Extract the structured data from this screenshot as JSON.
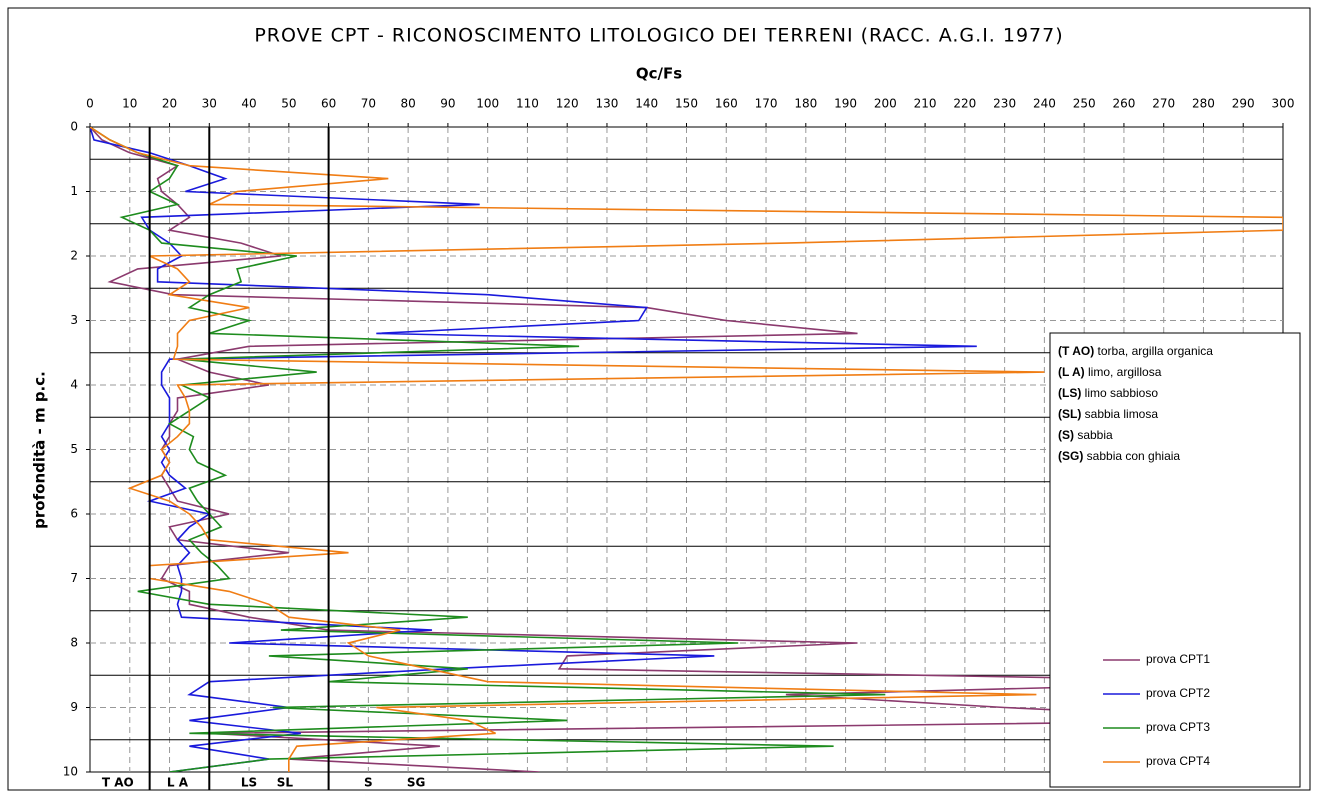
{
  "chart_data": {
    "type": "line",
    "title": "PROVE CPT - RICONOSCIMENTO LITOLOGICO DEI TERRENI (RACC. A.G.I. 1977)",
    "x_label": "Qc/Fs",
    "y_label": "profondità - m p.c.",
    "xlim": [
      0,
      300
    ],
    "xticks": [
      0,
      10,
      20,
      30,
      40,
      50,
      60,
      70,
      80,
      90,
      100,
      110,
      120,
      130,
      140,
      150,
      160,
      170,
      180,
      190,
      200,
      210,
      220,
      230,
      240,
      250,
      260,
      270,
      280,
      290,
      300
    ],
    "ylim": [
      0,
      10
    ],
    "yticks": [
      0,
      1,
      2,
      3,
      4,
      5,
      6,
      7,
      8,
      9,
      10
    ],
    "y_inverted": true,
    "grid": true,
    "zone_boundaries": [
      15,
      30,
      60
    ],
    "layer_lines": [
      0.5,
      1.5,
      2.5,
      3.5,
      4.5,
      5.5,
      6.5,
      7.5,
      8.5,
      9.5
    ],
    "zones": [
      {
        "code": "T AO",
        "x": 7
      },
      {
        "code": "L A",
        "x": 22
      },
      {
        "code": "LS",
        "x": 40
      },
      {
        "code": "SL",
        "x": 49
      },
      {
        "code": "S",
        "x": 70
      },
      {
        "code": "SG",
        "x": 82
      }
    ],
    "zone_legend": [
      {
        "code": "(T AO)",
        "text": " torba, argilla organica"
      },
      {
        "code": "(L A)",
        "text": " limo, argillosa"
      },
      {
        "code": "(LS)",
        "text": " limo sabbioso"
      },
      {
        "code": "(SL)",
        "text": " sabbia limosa"
      },
      {
        "code": "(S)",
        "text": " sabbia"
      },
      {
        "code": "(SG)",
        "text": " sabbia con ghiaia"
      }
    ],
    "depth": [
      0,
      0.2,
      0.4,
      0.6,
      0.8,
      1,
      1.2,
      1.4,
      1.6,
      1.8,
      2,
      2.2,
      2.4,
      2.6,
      2.8,
      3,
      3.2,
      3.4,
      3.6,
      3.8,
      4,
      4.2,
      4.4,
      4.6,
      4.8,
      5,
      5.2,
      5.4,
      5.6,
      5.8,
      6,
      6.2,
      6.4,
      6.6,
      6.8,
      7,
      7.2,
      7.4,
      7.6,
      7.8,
      8,
      8.2,
      8.4,
      8.6,
      8.8,
      9,
      9.2,
      9.4,
      9.6,
      9.8,
      10
    ],
    "series": [
      {
        "name": "prova CPT1",
        "color": "#8b3a6e",
        "values": [
          0,
          3,
          10,
          22,
          17,
          18,
          22,
          25,
          20,
          38,
          48,
          12,
          5,
          21,
          140,
          160,
          193,
          40,
          22,
          30,
          45,
          22,
          22,
          20,
          20,
          18,
          20,
          18,
          20,
          22,
          35,
          20,
          22,
          50,
          20,
          18,
          25,
          25,
          40,
          60,
          193,
          120,
          118,
          300,
          175,
          230,
          300,
          30,
          88,
          50,
          113
        ]
      },
      {
        "name": "prova CPT2",
        "color": "#1a1adc",
        "values": [
          0,
          1,
          15,
          25,
          34,
          24,
          98,
          13,
          15,
          20,
          23,
          17,
          17,
          100,
          140,
          138,
          72,
          223,
          20,
          18,
          18,
          20,
          20,
          20,
          18,
          20,
          18,
          20,
          24,
          15,
          30,
          25,
          22,
          25,
          22,
          23,
          23,
          22,
          23,
          86,
          35,
          157,
          90,
          30,
          25,
          50,
          25,
          53,
          25,
          45,
          20
        ]
      },
      {
        "name": "prova CPT3",
        "color": "#1e8c1e",
        "values": [
          0,
          5,
          12,
          22,
          20,
          15,
          22,
          8,
          15,
          18,
          52,
          37,
          38,
          30,
          25,
          40,
          30,
          123,
          23,
          57,
          23,
          30,
          25,
          20,
          26,
          25,
          27,
          34,
          25,
          27,
          30,
          33,
          25,
          28,
          32,
          35,
          12,
          30,
          95,
          48,
          163,
          45,
          95,
          60,
          200,
          46,
          120,
          25,
          187,
          45,
          20
        ]
      },
      {
        "name": "prova CPT4",
        "color": "#f07d14",
        "values": [
          0,
          5,
          12,
          25,
          75,
          37,
          30,
          300,
          300,
          175,
          15,
          22,
          25,
          20,
          40,
          25,
          22,
          22,
          21,
          240,
          22,
          24,
          25,
          25,
          22,
          18,
          20,
          18,
          10,
          20,
          25,
          28,
          30,
          65,
          15,
          15,
          35,
          45,
          50,
          78,
          65,
          70,
          85,
          100,
          238,
          72,
          95,
          102,
          52,
          50,
          50
        ]
      }
    ]
  }
}
